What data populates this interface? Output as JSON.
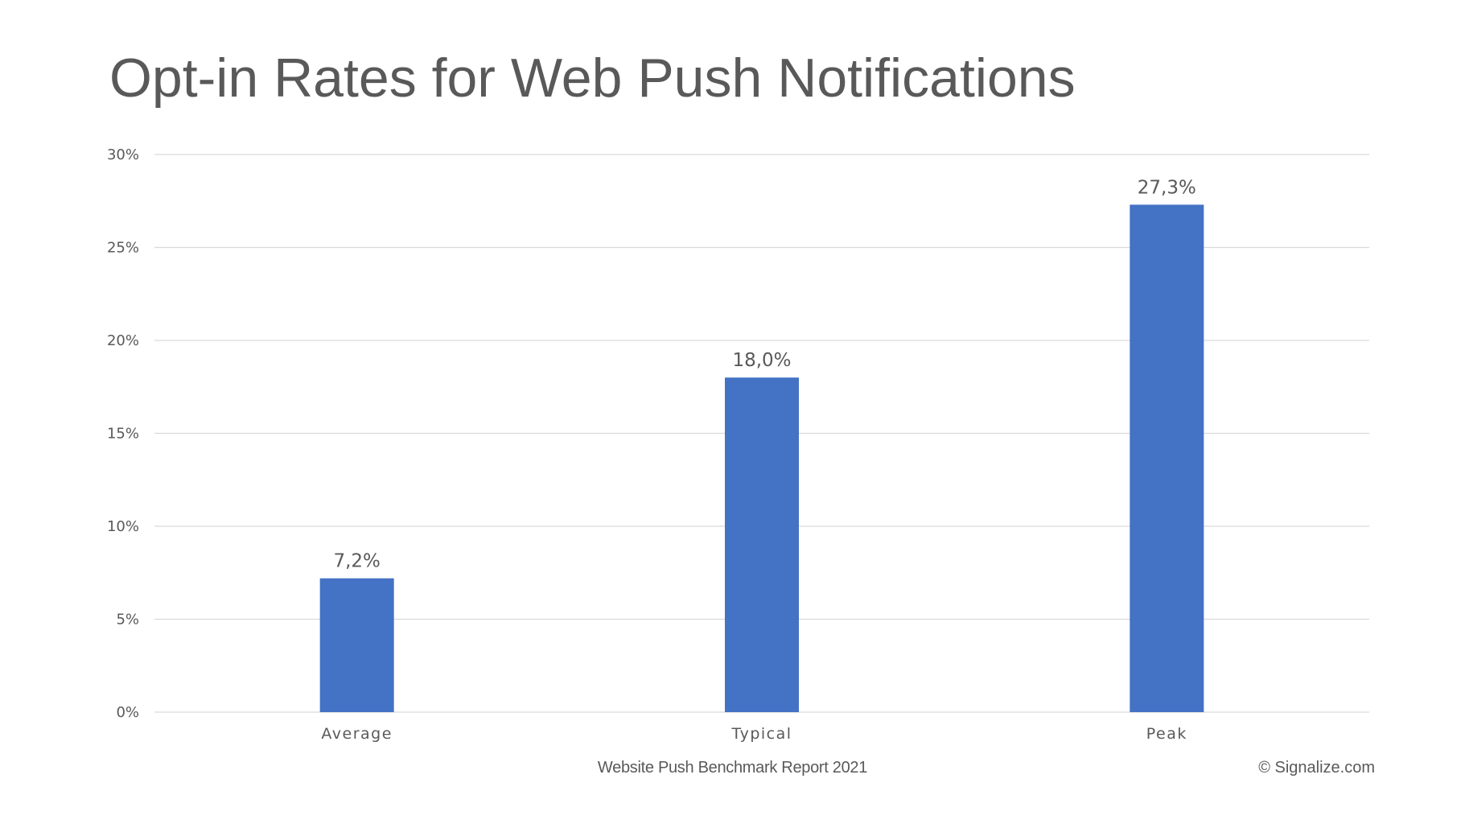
{
  "chart_data": {
    "type": "bar",
    "title": "Opt-in Rates for Web Push Notifications",
    "categories": [
      "Average",
      "Typical",
      "Peak"
    ],
    "values": [
      7.2,
      18.0,
      27.3
    ],
    "data_labels": [
      "7,2%",
      "18,0%",
      "27,3%"
    ],
    "ylim": [
      0,
      30
    ],
    "yticks": [
      0,
      5,
      10,
      15,
      20,
      25,
      30
    ],
    "ytick_labels": [
      "0%",
      "5%",
      "10%",
      "15%",
      "20%",
      "25%",
      "30%"
    ],
    "xlabel": "",
    "ylabel": "",
    "grid": true,
    "legend": "none",
    "bar_color": "#4472C4",
    "grid_color": "#D9D9D9"
  },
  "footer": {
    "source": "Website Push Benchmark Report 2021",
    "copyright": "© Signalize.com"
  }
}
